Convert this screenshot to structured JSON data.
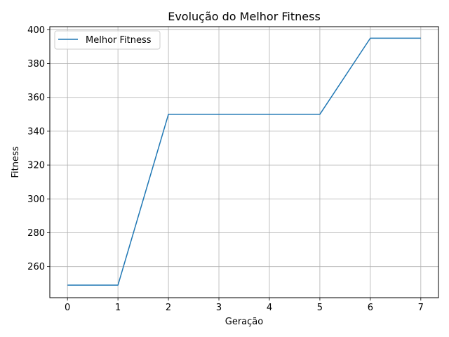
{
  "chart_data": {
    "type": "line",
    "title": "Evolução do Melhor Fitness",
    "xlabel": "Geração",
    "ylabel": "Fitness",
    "x": [
      0,
      1,
      2,
      3,
      4,
      5,
      6,
      7
    ],
    "series": [
      {
        "name": "Melhor Fitness",
        "color": "#1f77b4",
        "values": [
          249,
          249,
          350,
          350,
          350,
          350,
          395,
          395
        ]
      }
    ],
    "xlim": [
      -0.35,
      7.35
    ],
    "ylim": [
      241.6,
      401.8
    ],
    "xticks": [
      0,
      1,
      2,
      3,
      4,
      5,
      6,
      7
    ],
    "yticks": [
      260,
      280,
      300,
      320,
      340,
      360,
      380,
      400
    ],
    "grid": true,
    "legend": "top-left"
  }
}
